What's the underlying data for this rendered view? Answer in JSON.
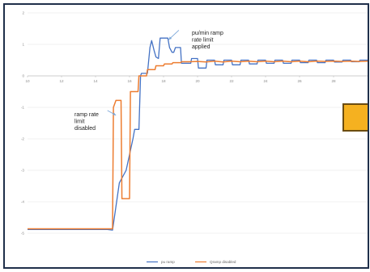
{
  "chart_data": {
    "type": "line",
    "title": "",
    "xlabel": "",
    "ylabel": "",
    "xlim": [
      10,
      30
    ],
    "ylim": [
      -5,
      2
    ],
    "x_ticks": [
      "10",
      "12",
      "14",
      "16",
      "18",
      "20",
      "22",
      "24",
      "26",
      "28"
    ],
    "y_ticks": [
      "2",
      "1",
      "0",
      "-1",
      "-2",
      "-3",
      "-4",
      "-5"
    ],
    "grid": "horizontal",
    "legend_position": "bottom",
    "series": [
      {
        "name": "pu ramp",
        "color": "#4472c4",
        "points": [
          [
            10,
            -4.88
          ],
          [
            14.7,
            -4.88
          ],
          [
            15.0,
            -4.9
          ],
          [
            15.4,
            -3.4
          ],
          [
            15.8,
            -3.0
          ],
          [
            16.2,
            -2.0
          ],
          [
            16.3,
            -1.7
          ],
          [
            16.55,
            -1.7
          ],
          [
            16.65,
            0.0
          ],
          [
            16.7,
            0.08
          ],
          [
            17.05,
            0.08
          ],
          [
            17.2,
            0.9
          ],
          [
            17.3,
            1.12
          ],
          [
            17.45,
            0.8
          ],
          [
            17.55,
            0.6
          ],
          [
            17.7,
            0.55
          ],
          [
            17.8,
            1.2
          ],
          [
            18.25,
            1.2
          ],
          [
            18.35,
            0.9
          ],
          [
            18.5,
            0.75
          ],
          [
            18.6,
            0.75
          ],
          [
            18.7,
            0.9
          ],
          [
            19.0,
            0.9
          ],
          [
            19.05,
            0.4
          ],
          [
            19.6,
            0.4
          ],
          [
            19.65,
            0.55
          ],
          [
            20.0,
            0.55
          ],
          [
            20.05,
            0.25
          ],
          [
            20.5,
            0.25
          ],
          [
            20.55,
            0.5
          ],
          [
            21.0,
            0.5
          ],
          [
            21.05,
            0.35
          ],
          [
            21.5,
            0.35
          ],
          [
            21.55,
            0.5
          ],
          [
            22.0,
            0.5
          ],
          [
            22.05,
            0.35
          ],
          [
            22.5,
            0.35
          ],
          [
            22.55,
            0.5
          ],
          [
            23.0,
            0.5
          ],
          [
            23.05,
            0.38
          ],
          [
            23.5,
            0.38
          ],
          [
            23.55,
            0.5
          ],
          [
            24.0,
            0.5
          ],
          [
            24.05,
            0.4
          ],
          [
            24.5,
            0.4
          ],
          [
            24.55,
            0.5
          ],
          [
            25.0,
            0.5
          ],
          [
            25.05,
            0.4
          ],
          [
            25.5,
            0.4
          ],
          [
            25.55,
            0.5
          ],
          [
            26.0,
            0.5
          ],
          [
            26.05,
            0.42
          ],
          [
            26.5,
            0.42
          ],
          [
            26.55,
            0.5
          ],
          [
            27.0,
            0.5
          ],
          [
            27.05,
            0.42
          ],
          [
            27.5,
            0.42
          ],
          [
            27.55,
            0.5
          ],
          [
            28.0,
            0.5
          ],
          [
            28.05,
            0.44
          ],
          [
            28.5,
            0.44
          ],
          [
            28.55,
            0.5
          ],
          [
            29.0,
            0.5
          ],
          [
            29.05,
            0.45
          ],
          [
            29.5,
            0.45
          ],
          [
            29.55,
            0.5
          ],
          [
            30.0,
            0.5
          ]
        ],
        "values": []
      },
      {
        "name": "Qramp disabled",
        "color": "#ed7d31",
        "points": [
          [
            10,
            -4.86
          ],
          [
            14.4,
            -4.86
          ],
          [
            15.0,
            -4.86
          ],
          [
            15.05,
            -1.0
          ],
          [
            15.2,
            -0.78
          ],
          [
            15.5,
            -0.78
          ],
          [
            15.55,
            -3.9
          ],
          [
            16.0,
            -3.9
          ],
          [
            16.05,
            -0.5
          ],
          [
            16.5,
            -0.5
          ],
          [
            16.55,
            0.0
          ],
          [
            17.0,
            0.0
          ],
          [
            17.05,
            0.2
          ],
          [
            17.5,
            0.2
          ],
          [
            17.55,
            0.32
          ],
          [
            18.0,
            0.32
          ],
          [
            18.05,
            0.38
          ],
          [
            18.5,
            0.38
          ],
          [
            18.55,
            0.42
          ],
          [
            19.0,
            0.42
          ],
          [
            19.05,
            0.45
          ],
          [
            19.5,
            0.45
          ],
          [
            20.0,
            0.46
          ],
          [
            20.5,
            0.44
          ],
          [
            21.0,
            0.47
          ],
          [
            21.5,
            0.44
          ],
          [
            22.0,
            0.47
          ],
          [
            22.5,
            0.45
          ],
          [
            23.0,
            0.47
          ],
          [
            23.5,
            0.45
          ],
          [
            24.0,
            0.47
          ],
          [
            24.5,
            0.45
          ],
          [
            25.0,
            0.47
          ],
          [
            25.5,
            0.45
          ],
          [
            26.0,
            0.47
          ],
          [
            26.5,
            0.45
          ],
          [
            27.0,
            0.47
          ],
          [
            27.5,
            0.46
          ],
          [
            28.0,
            0.47
          ],
          [
            28.5,
            0.46
          ],
          [
            29.0,
            0.47
          ],
          [
            29.5,
            0.46
          ],
          [
            30.0,
            0.47
          ]
        ],
        "values": []
      }
    ],
    "annotations": [
      {
        "lines": [
          "pu/min ramp",
          "rate limit",
          "applied"
        ],
        "arrow_from": [
          18.9,
          1.45
        ],
        "arrow_to": [
          18.3,
          1.15
        ]
      },
      {
        "lines": [
          "ramp rate",
          "limit",
          "disabled"
        ],
        "arrow_from": [
          14.7,
          -1.1
        ],
        "arrow_to": [
          15.2,
          -1.25
        ]
      }
    ]
  },
  "overlay_box": {
    "fill": "#f5b120",
    "border": "#6b4c10"
  },
  "colors": {
    "border": "#1f2f4a",
    "axis": "#bfbfbf",
    "grid": "#e6e6e6"
  }
}
